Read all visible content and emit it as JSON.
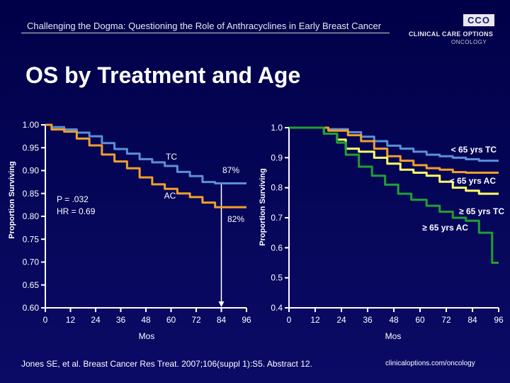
{
  "header": {
    "title": "Challenging the Dogma: Questioning the Role of Anthracyclines in Early Breast Cancer",
    "logo_box": "CCO",
    "logo_line1": "CLINICAL CARE OPTIONS",
    "logo_line2": "ONCOLOGY"
  },
  "slide_title": "OS by Treatment and Age",
  "footer": {
    "citation": "Jones SE, et al. Breast Cancer Res Treat. 2007;106(suppl 1):S5. Abstract 12.",
    "url": "clinicaloptions.com/oncology"
  },
  "colors": {
    "tc": "#5b8fd6",
    "ac": "#f0a02a",
    "young_tc": "#5b8fd6",
    "young_ac": "#f0a02a",
    "old_tc": "#ffff66",
    "old_ac": "#20a030"
  },
  "chart_data": [
    {
      "type": "line",
      "title": "",
      "xlabel": "Mos",
      "ylabel": "Proportion Surviving",
      "xlim": [
        0,
        96
      ],
      "ylim": [
        0.6,
        1.0
      ],
      "xticks": [
        "0",
        "12",
        "24",
        "36",
        "48",
        "60",
        "72",
        "84",
        "96"
      ],
      "yticks": [
        "0.60",
        "0.65",
        "0.70",
        "0.75",
        "0.80",
        "0.85",
        "0.90",
        "0.95",
        "1.00"
      ],
      "annotations": {
        "tc_label": "TC",
        "tc_pct": "87%",
        "ac_label": "AC",
        "ac_pct": "82%",
        "p_value": "P = .032",
        "hr": "HR = 0.69"
      },
      "series": [
        {
          "name": "TC",
          "x": [
            0,
            6,
            12,
            18,
            24,
            30,
            36,
            42,
            48,
            54,
            60,
            66,
            72,
            78,
            84,
            90,
            96
          ],
          "values": [
            1.0,
            0.995,
            0.99,
            0.983,
            0.975,
            0.96,
            0.947,
            0.937,
            0.925,
            0.918,
            0.91,
            0.897,
            0.888,
            0.875,
            0.872,
            0.872,
            0.872
          ]
        },
        {
          "name": "AC",
          "x": [
            0,
            6,
            12,
            18,
            24,
            30,
            36,
            42,
            48,
            54,
            60,
            66,
            72,
            78,
            84,
            90,
            96
          ],
          "values": [
            1.0,
            0.99,
            0.985,
            0.97,
            0.955,
            0.935,
            0.92,
            0.905,
            0.885,
            0.87,
            0.86,
            0.85,
            0.842,
            0.83,
            0.82,
            0.82,
            0.82
          ]
        }
      ],
      "reference_x": 84
    },
    {
      "type": "line",
      "title": "",
      "xlabel": "Mos",
      "ylabel": "Proportion Surviving",
      "xlim": [
        0,
        96
      ],
      "ylim": [
        0.4,
        1.0
      ],
      "xticks": [
        "0",
        "12",
        "24",
        "36",
        "48",
        "60",
        "72",
        "84",
        "96"
      ],
      "yticks": [
        "0.4",
        "0.5",
        "0.6",
        "0.7",
        "0.8",
        "0.9",
        "1.0"
      ],
      "series": [
        {
          "name": "< 65 yrs TC",
          "x": [
            0,
            12,
            24,
            30,
            36,
            42,
            48,
            54,
            60,
            66,
            72,
            78,
            84,
            90,
            96
          ],
          "values": [
            1.0,
            1.0,
            0.995,
            0.985,
            0.97,
            0.955,
            0.94,
            0.93,
            0.92,
            0.91,
            0.905,
            0.9,
            0.895,
            0.89,
            0.89
          ]
        },
        {
          "name": "< 65 yrs AC",
          "x": [
            0,
            12,
            24,
            30,
            36,
            42,
            48,
            54,
            60,
            66,
            72,
            78,
            84,
            90,
            96
          ],
          "values": [
            1.0,
            1.0,
            0.99,
            0.975,
            0.955,
            0.93,
            0.905,
            0.89,
            0.875,
            0.865,
            0.86,
            0.852,
            0.85,
            0.85,
            0.85
          ]
        },
        {
          "name": "≥ 65 yrs TC",
          "x": [
            0,
            12,
            20,
            24,
            28,
            36,
            42,
            48,
            54,
            60,
            66,
            72,
            78,
            84,
            90,
            96
          ],
          "values": [
            1.0,
            1.0,
            0.98,
            0.96,
            0.93,
            0.92,
            0.9,
            0.88,
            0.86,
            0.85,
            0.84,
            0.82,
            0.8,
            0.79,
            0.78,
            0.78
          ]
        },
        {
          "name": "≥ 65 yrs AC",
          "x": [
            0,
            12,
            20,
            24,
            28,
            36,
            40,
            48,
            52,
            60,
            66,
            72,
            78,
            84,
            90,
            96
          ],
          "values": [
            1.0,
            1.0,
            0.98,
            0.95,
            0.91,
            0.87,
            0.84,
            0.81,
            0.78,
            0.76,
            0.74,
            0.72,
            0.7,
            0.69,
            0.65,
            0.55
          ]
        }
      ]
    }
  ]
}
